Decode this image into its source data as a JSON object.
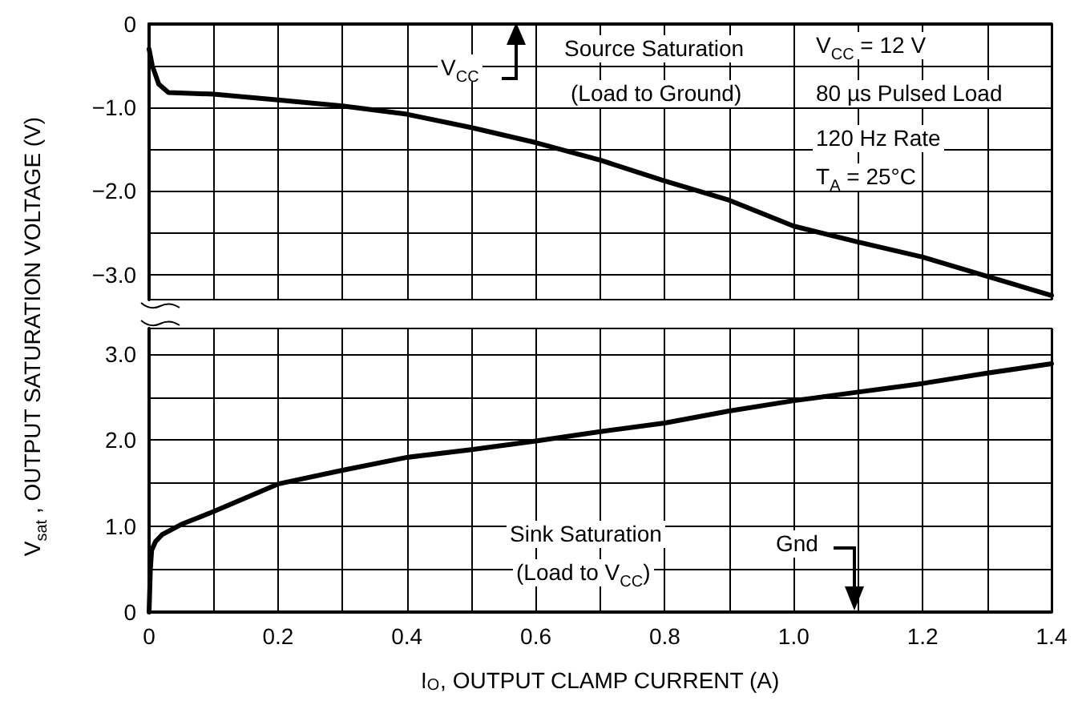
{
  "chart_data": [
    {
      "type": "line",
      "annotations": [
        "V$_{CC}$",
        "Source Saturation",
        "(Load to Ground)",
        "V$_{CC}$ = 12 V",
        "80  µs Pulsed Load",
        "120 Hz Rate",
        "T$_{A}$ = 25°C"
      ],
      "ylabel": "V$_{sat}$ , OUTPUT SATURATION VOLTAGE (V)",
      "series": [
        {
          "color": "#000000",
          "x": [
            0,
            0.005,
            0.015,
            0.03,
            0.1,
            0.2,
            0.3,
            0.4,
            0.5,
            0.6,
            0.7,
            0.8,
            0.9,
            1.0,
            1.1,
            1.2,
            1.3,
            1.4
          ],
          "values": [
            -0.3,
            -0.5,
            -0.72,
            -0.82,
            -0.84,
            -0.91,
            -0.98,
            -1.08,
            -1.24,
            -1.42,
            -1.63,
            -1.88,
            -2.11,
            -2.42,
            -2.61,
            -2.79,
            -3.02,
            -3.25
          ]
        }
      ],
      "xlim": [
        0,
        1.4
      ],
      "xticks": [
        {
          "value": 0,
          "label": null
        },
        {
          "value": 0.1,
          "label": null
        },
        {
          "value": 0.2,
          "label": null
        },
        {
          "value": 0.3,
          "label": null
        },
        {
          "value": 0.4,
          "label": null
        },
        {
          "value": 0.5,
          "label": null
        },
        {
          "value": 0.6,
          "label": null
        },
        {
          "value": 0.7,
          "label": null
        },
        {
          "value": 0.8,
          "label": null
        },
        {
          "value": 0.9,
          "label": null
        },
        {
          "value": 1,
          "label": null
        },
        {
          "value": 1.1,
          "label": null
        },
        {
          "value": 1.2,
          "label": null
        },
        {
          "value": 1.3,
          "label": null
        },
        {
          "value": 1.4,
          "label": null
        }
      ],
      "ylim": [
        -3.3,
        0
      ],
      "yticks": [
        0,
        {
          "value": -0.5,
          "label": null
        },
        {
          "value": -1,
          "label": "−1.0"
        },
        {
          "value": -1.5,
          "label": null
        },
        {
          "value": -2,
          "label": "−2.0"
        },
        {
          "value": -2.5,
          "label": null
        },
        {
          "value": -3,
          "label": "−3.0"
        }
      ],
      "tick_labels": "y",
      "grid": true,
      "marker": "none",
      "line_style": "solid"
    },
    {
      "type": "line",
      "xlabel": "I$_{O}$, OUTPUT CLAMP CURRENT (A)",
      "annotations": [
        "Sink Saturation",
        "(Load to V$_{CC}$)",
        "Gnd"
      ],
      "series": [
        {
          "color": "#000000",
          "x": [
            0,
            0.002,
            0.004,
            0.01,
            0.02,
            0.05,
            0.1,
            0.2,
            0.3,
            0.4,
            0.5,
            0.6,
            0.7,
            0.8,
            0.9,
            1.0,
            1.1,
            1.2,
            1.3,
            1.4
          ],
          "values": [
            0,
            0.5,
            0.72,
            0.82,
            0.9,
            1.02,
            1.17,
            1.49,
            1.65,
            1.8,
            1.89,
            1.99,
            2.1,
            2.2,
            2.34,
            2.46,
            2.56,
            2.66,
            2.78,
            2.89
          ]
        }
      ],
      "xlim": [
        0,
        1.4
      ],
      "xticks": [
        0,
        {
          "value": 0.1,
          "label": null
        },
        0.2,
        {
          "value": 0.3,
          "label": null
        },
        0.4,
        {
          "value": 0.5,
          "label": null
        },
        0.6,
        {
          "value": 0.7,
          "label": null
        },
        0.8,
        {
          "value": 0.9,
          "label": null
        },
        {
          "value": 1,
          "label": "1.0"
        },
        {
          "value": 1.1,
          "label": null
        },
        1.2,
        {
          "value": 1.3,
          "label": null
        },
        1.4
      ],
      "ylim": [
        0,
        3.3
      ],
      "yticks": [
        0,
        {
          "value": 0.5,
          "label": null
        },
        {
          "value": 1,
          "label": "1.0"
        },
        {
          "value": 1.5,
          "label": null
        },
        {
          "value": 2,
          "label": "2.0"
        },
        {
          "value": 2.5,
          "label": null
        },
        {
          "value": 3,
          "label": "3.0"
        }
      ],
      "grid": true,
      "marker": "none",
      "line_style": "solid"
    }
  ]
}
